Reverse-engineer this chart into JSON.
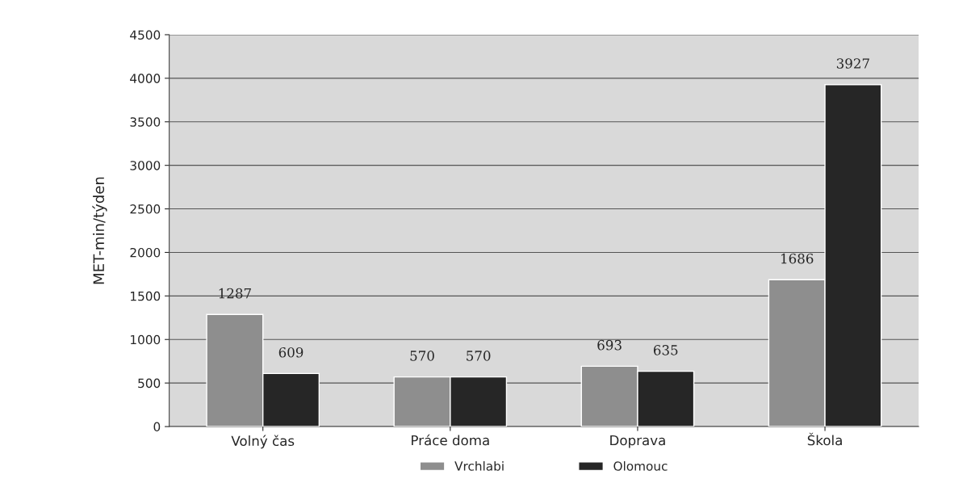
{
  "chart_data": {
    "type": "bar",
    "ylabel": "MET-min/týden",
    "categories": [
      "Volný čas",
      "Práce doma",
      "Doprava",
      "Škola"
    ],
    "series": [
      {
        "name": "Vrchlabi",
        "color": "#8e8e8e",
        "values": [
          1287,
          570,
          693,
          1686
        ]
      },
      {
        "name": "Olomouc",
        "color": "#262626",
        "values": [
          609,
          570,
          635,
          3927
        ]
      }
    ],
    "ylim": [
      0,
      4500
    ],
    "yticks": [
      0,
      500,
      1000,
      1500,
      2000,
      2500,
      3000,
      3500,
      4000,
      4500
    ],
    "grid": "y",
    "legend": "bottom",
    "data_labels": true
  }
}
